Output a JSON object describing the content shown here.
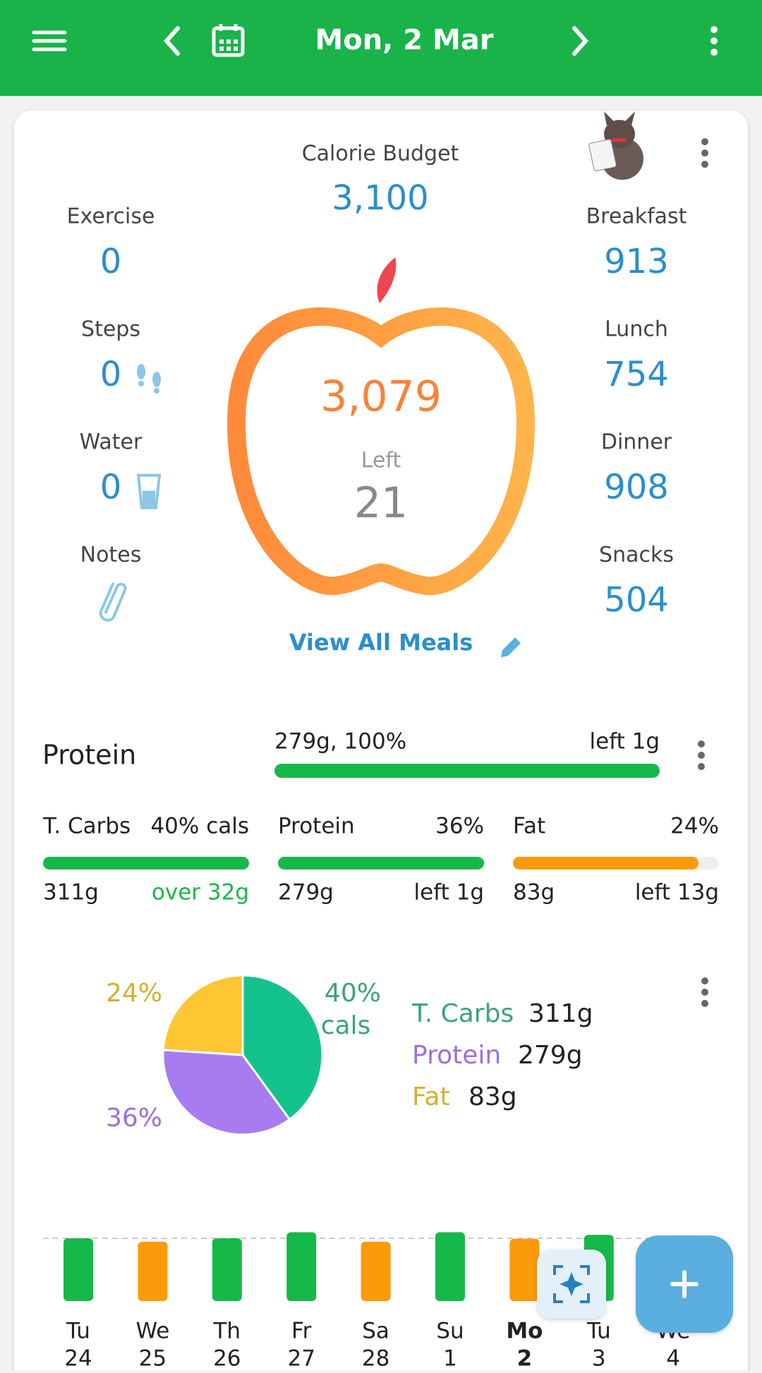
{
  "header": {
    "title": "Mon, 2 Mar"
  },
  "summary": {
    "budget_label": "Calorie Budget",
    "budget": "3,100",
    "left_items": [
      {
        "label": "Exercise",
        "value": "0"
      },
      {
        "label": "Steps",
        "value": "0"
      },
      {
        "label": "Water",
        "value": "0"
      },
      {
        "label": "Notes"
      }
    ],
    "right_items": [
      {
        "label": "Breakfast",
        "value": "913"
      },
      {
        "label": "Lunch",
        "value": "754"
      },
      {
        "label": "Dinner",
        "value": "908"
      },
      {
        "label": "Snacks",
        "value": "504"
      }
    ],
    "eaten": "3,079",
    "left_label": "Left",
    "left_value": "21",
    "view_all": "View All Meals"
  },
  "protein_goal": {
    "label": "Protein",
    "progress": "279g, 100%",
    "remaining": "left 1g"
  },
  "macros": [
    {
      "name": "T. Carbs",
      "share": "40% cals",
      "amount": "311g",
      "status": "over 32g"
    },
    {
      "name": "Protein",
      "share": "36%",
      "amount": "279g",
      "status": "left 1g"
    },
    {
      "name": "Fat",
      "share": "24%",
      "amount": "83g",
      "status": "left 13g"
    }
  ],
  "chart_data": [
    {
      "type": "pie",
      "categories": [
        "T. Carbs",
        "Protein",
        "Fat"
      ],
      "values": [
        40,
        36,
        24
      ],
      "value_labels": [
        "40%",
        "36%",
        "24%"
      ],
      "note": "cals",
      "colors": [
        "#14c28e",
        "#a87cf0",
        "#fdc632"
      ],
      "amounts": [
        "311g",
        "279g",
        "83g"
      ]
    },
    {
      "type": "bar",
      "categories": [
        "Tu",
        "We",
        "Th",
        "Fr",
        "Sa",
        "Su",
        "Mo",
        "Tu",
        "We"
      ],
      "dates": [
        "24",
        "25",
        "26",
        "27",
        "28",
        "1",
        "2",
        "3",
        "4"
      ],
      "values": [
        3100,
        2930,
        3100,
        3400,
        2930,
        3400,
        3079,
        3270,
        null
      ],
      "colors": [
        "#17b84a",
        "#fb9a0a",
        "#17b84a",
        "#17b84a",
        "#fb9a0a",
        "#17b84a",
        "#fb9a0a",
        "#17b84a",
        "#17b84a"
      ],
      "target": 3100,
      "ylim": [
        0,
        3500
      ]
    }
  ]
}
